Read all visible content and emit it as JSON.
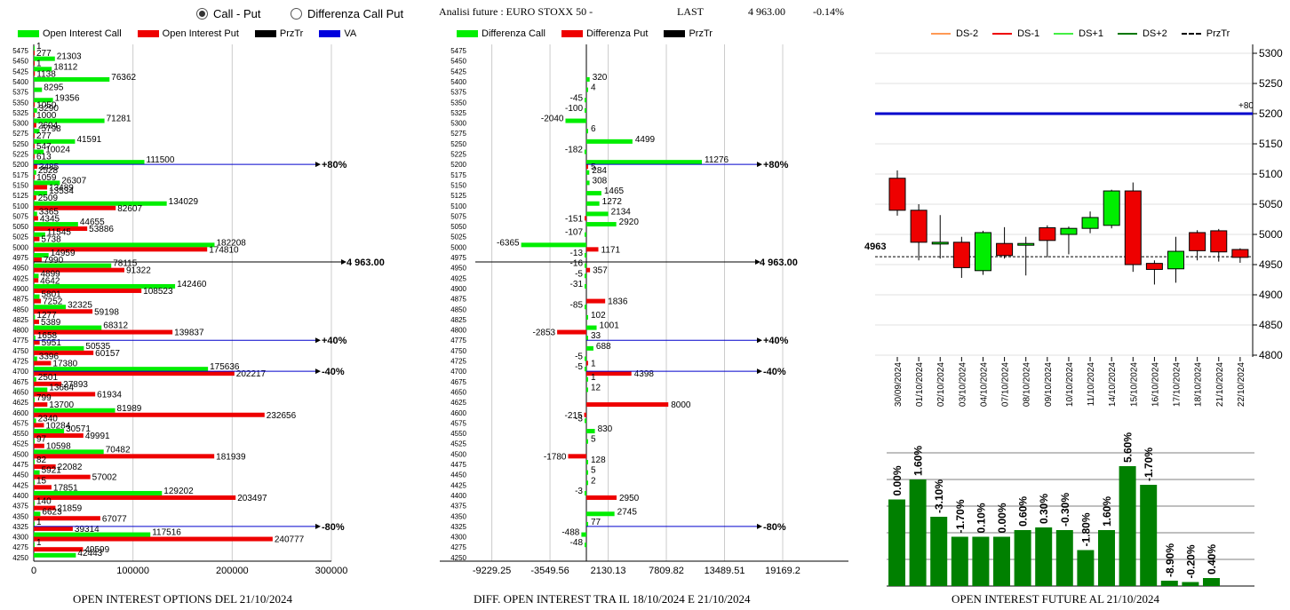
{
  "header": {
    "radio_call_put": "Call - Put",
    "radio_diff": "Differenza Call Put",
    "title": "Analisi future : EURO STOXX 50 -",
    "last_label": "LAST",
    "last_value": "4 963.00",
    "last_change": "-0.14%"
  },
  "legend_left": [
    "Open Interest Call",
    "Open Interest Put",
    "PrzTr",
    "VA"
  ],
  "legend_mid": [
    "Differenza Call",
    "Differenza Put",
    "PrzTr"
  ],
  "legend_right": [
    "DS-2",
    "DS-1",
    "DS+1",
    "DS+2",
    "PrzTr"
  ],
  "footers": {
    "left": "OPEN INTEREST OPTIONS DEL 21/10/2024",
    "mid": "DIFF. OPEN INTEREST TRA IL 18/10/2024 E 21/10/2024",
    "right": "OPEN INTEREST FUTURE AL 21/10/2024"
  },
  "colors": {
    "call": "#00ee00",
    "put": "#ee0000",
    "line": "#0000cc",
    "green_dark": "#008000"
  },
  "chart_data": [
    {
      "type": "bar",
      "orientation": "horizontal",
      "categories": [
        "5475",
        "5450",
        "5425",
        "5400",
        "5375",
        "5350",
        "5325",
        "5300",
        "5275",
        "5250",
        "5225",
        "5200",
        "5175",
        "5150",
        "5125",
        "5100",
        "5075",
        "5050",
        "5025",
        "5000",
        "4975",
        "4950",
        "4925",
        "4900",
        "4875",
        "4850",
        "4825",
        "4800",
        "4775",
        "4750",
        "4725",
        "4700",
        "4675",
        "4650",
        "4625",
        "4600",
        "4575",
        "4550",
        "4525",
        "4500",
        "4475",
        "4450",
        "4425",
        "4400",
        "4375",
        "4350",
        "4325",
        "4300",
        "4275",
        "4250"
      ],
      "series": [
        {
          "name": "Open Interest Call",
          "values": [
            1,
            21303,
            18112,
            76362,
            8295,
            19356,
            3290,
            71281,
            5798,
            41591,
            10024,
            111500,
            2528,
            26307,
            13534,
            134029,
            3365,
            44655,
            11545,
            182208,
            14959,
            78115,
            4899,
            142460,
            5801,
            32325,
            1277,
            68312,
            1658,
            50535,
            3396,
            175636,
            2501,
            13684,
            799,
            81989,
            2340,
            30571,
            97,
            70482,
            82,
            5921,
            15,
            129202,
            140,
            6623,
            1,
            117516,
            1,
            42443
          ]
        },
        {
          "name": "Open Interest Put",
          "values": [
            277,
            1,
            1138,
            null,
            null,
            1050,
            1000,
            2604,
            277,
            547,
            613,
            3485,
            1059,
            13489,
            2509,
            82607,
            4345,
            53886,
            5738,
            174810,
            7990,
            91322,
            4642,
            108523,
            7252,
            59198,
            5389,
            139837,
            5951,
            60157,
            17380,
            202217,
            27893,
            61934,
            13700,
            232656,
            10284,
            49991,
            10598,
            181939,
            22082,
            57002,
            17851,
            203497,
            21859,
            67077,
            39314,
            240777,
            49599,
            null
          ]
        }
      ],
      "xticks": [
        "0",
        "100000",
        "200000",
        "300000"
      ],
      "annotations": [
        "+80%",
        "4 963.00",
        "+40%",
        "-40%",
        "-80%"
      ]
    },
    {
      "type": "bar",
      "orientation": "horizontal",
      "categories": [
        "5475",
        "5450",
        "5425",
        "5400",
        "5375",
        "5350",
        "5325",
        "5300",
        "5275",
        "5250",
        "5225",
        "5200",
        "5175",
        "5150",
        "5125",
        "5100",
        "5075",
        "5050",
        "5025",
        "5000",
        "4975",
        "4950",
        "4925",
        "4900",
        "4875",
        "4850",
        "4825",
        "4800",
        "4775",
        "4750",
        "4725",
        "4700",
        "4675",
        "4650",
        "4625",
        "4600",
        "4575",
        "4550",
        "4525",
        "4500",
        "4475",
        "4450",
        "4425",
        "4400",
        "4375",
        "4350",
        "4325",
        "4300",
        "4275",
        "4250"
      ],
      "series": [
        {
          "name": "Differenza Call",
          "values": [
            null,
            null,
            null,
            320,
            4,
            -45,
            -100,
            -2040,
            6,
            4499,
            -182,
            11276,
            284,
            308,
            1465,
            1272,
            2134,
            2920,
            -107,
            -6365,
            -13,
            -16,
            -5,
            -31,
            null,
            -85,
            102,
            1001,
            33,
            688,
            -5,
            -5,
            1,
            12,
            null,
            null,
            -3,
            830,
            5,
            null,
            128,
            5,
            2,
            -3,
            null,
            2745,
            77,
            -488,
            -48,
            null
          ]
        },
        {
          "name": "Differenza Put",
          "values": [
            null,
            null,
            null,
            null,
            null,
            null,
            null,
            null,
            null,
            null,
            null,
            5,
            null,
            null,
            null,
            null,
            -151,
            null,
            null,
            1171,
            null,
            357,
            null,
            null,
            1836,
            null,
            null,
            -2853,
            null,
            null,
            1,
            4398,
            null,
            null,
            8000,
            -215,
            null,
            null,
            null,
            -1780,
            null,
            null,
            null,
            2950,
            null,
            null,
            null,
            null,
            null,
            null
          ]
        }
      ],
      "xticks": [
        "-9229.25",
        "-3549.56",
        "2130.13",
        "7809.82",
        "13489.51",
        "19169.2"
      ],
      "annotations": [
        "+80%",
        "4 963.00",
        "+40%",
        "-40%",
        "-80%"
      ]
    },
    {
      "type": "candlestick",
      "x": [
        "30/09/2024",
        "01/10/2024",
        "02/10/2024",
        "03/10/2024",
        "04/10/2024",
        "07/10/2024",
        "08/10/2024",
        "09/10/2024",
        "10/10/2024",
        "11/10/2024",
        "14/10/2024",
        "15/10/2024",
        "16/10/2024",
        "17/10/2024",
        "18/10/2024",
        "21/10/2024",
        "22/10/2024"
      ],
      "open": [
        5093,
        5040,
        4987,
        4987,
        4940,
        4985,
        4985,
        5011,
        5000,
        5010,
        5015,
        5072,
        4952,
        4943,
        5003,
        5006,
        4975
      ],
      "close": [
        5040,
        4987,
        4987,
        4945,
        5003,
        4965,
        4985,
        4990,
        5010,
        5028,
        5072,
        4950,
        4942,
        4972,
        4973,
        4971,
        4962
      ],
      "high": [
        5106,
        5050,
        5032,
        4996,
        5006,
        5012,
        4996,
        5015,
        5013,
        5038,
        5074,
        5086,
        4957,
        4996,
        5007,
        5009,
        4977
      ],
      "low": [
        5031,
        4957,
        4960,
        4928,
        4933,
        4960,
        4932,
        4962,
        4967,
        5002,
        5010,
        4938,
        4917,
        4920,
        4957,
        4955,
        4953
      ],
      "ylim": [
        4800,
        5300
      ],
      "yticks": [
        "5300",
        "5250",
        "5200",
        "5150",
        "5100",
        "5050",
        "5000",
        "4950",
        "4900",
        "4850",
        "4800"
      ],
      "va_level": 5200,
      "va_label": "+80",
      "last_label": "4963",
      "last_value": 4963
    },
    {
      "type": "bar",
      "labels": [
        "0.00%",
        "1.60%",
        "-3.10%",
        "-1.70%",
        "0.10%",
        "0.00%",
        "0.60%",
        "0.30%",
        "-0.30%",
        "-1.80%",
        "1.60%",
        "5.60%",
        "-1.70%",
        "-8.90%",
        "-0.20%",
        "0.40%"
      ],
      "relative_heights": [
        0.65,
        0.8,
        0.52,
        0.37,
        0.37,
        0.37,
        0.42,
        0.44,
        0.42,
        0.27,
        0.42,
        0.9,
        0.76,
        0.04,
        0.03,
        0.06
      ]
    }
  ]
}
